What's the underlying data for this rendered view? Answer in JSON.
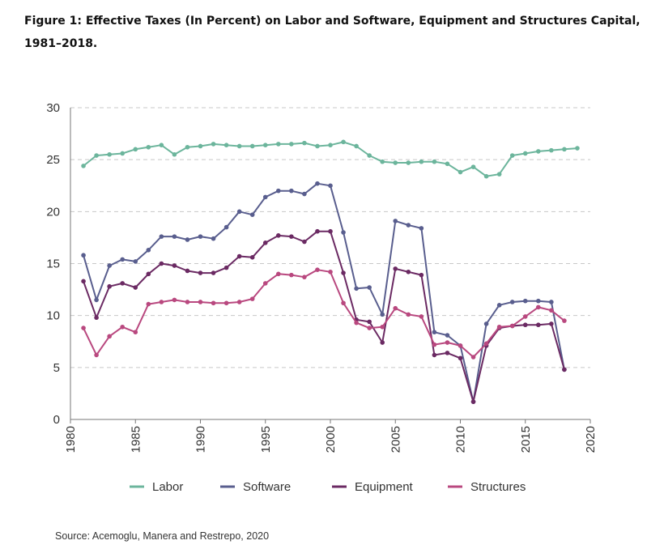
{
  "title": "Figure 1: Effective Taxes (In Percent) on Labor and Software, Equipment and Structures Capital, 1981–2018.",
  "source": "Source: Acemoglu, Manera and Restrepo, 2020",
  "chart_data": {
    "type": "line",
    "title": "Figure 1: Effective Taxes (In Percent) on Labor and Software, Equipment and Structures Capital, 1981–2018.",
    "xlabel": "",
    "ylabel": "",
    "xlim": [
      1980,
      2020
    ],
    "ylim": [
      0,
      30
    ],
    "x_ticks": [
      1980,
      1985,
      1990,
      1995,
      2000,
      2005,
      2010,
      2015,
      2020
    ],
    "y_ticks": [
      0,
      5,
      10,
      15,
      20,
      25,
      30
    ],
    "grid": "horizontal dashed",
    "legend_position": "bottom",
    "x": [
      1981,
      1982,
      1983,
      1984,
      1985,
      1986,
      1987,
      1988,
      1989,
      1990,
      1991,
      1992,
      1993,
      1994,
      1995,
      1996,
      1997,
      1998,
      1999,
      2000,
      2001,
      2002,
      2003,
      2004,
      2005,
      2006,
      2007,
      2008,
      2009,
      2010,
      2011,
      2012,
      2013,
      2014,
      2015,
      2016,
      2017,
      2018,
      2019
    ],
    "series": [
      {
        "name": "Labor",
        "color": "#6cb59c",
        "values": [
          24.4,
          25.4,
          25.5,
          25.6,
          26.0,
          26.2,
          26.4,
          25.5,
          26.2,
          26.3,
          26.5,
          26.4,
          26.3,
          26.3,
          26.4,
          26.5,
          26.5,
          26.6,
          26.3,
          26.4,
          26.7,
          26.3,
          25.4,
          24.8,
          24.7,
          24.7,
          24.8,
          24.8,
          24.6,
          23.8,
          24.3,
          23.4,
          23.6,
          25.4,
          25.6,
          25.8,
          25.9,
          26.0,
          26.1
        ]
      },
      {
        "name": "Software",
        "color": "#595e8e",
        "values": [
          15.8,
          11.5,
          14.8,
          15.4,
          15.2,
          16.3,
          17.6,
          17.6,
          17.3,
          17.6,
          17.4,
          18.5,
          20.0,
          19.7,
          21.4,
          22.0,
          22.0,
          21.7,
          22.7,
          22.5,
          18.0,
          12.6,
          12.7,
          10.1,
          19.1,
          18.7,
          18.4,
          8.4,
          8.1,
          7.1,
          1.7,
          9.2,
          11.0,
          11.3,
          11.4,
          11.4,
          11.3,
          4.8,
          null
        ]
      },
      {
        "name": "Equipment",
        "color": "#6b2a63",
        "values": [
          13.3,
          9.8,
          12.8,
          13.1,
          12.7,
          14.0,
          15.0,
          14.8,
          14.3,
          14.1,
          14.1,
          14.6,
          15.7,
          15.6,
          17.0,
          17.7,
          17.6,
          17.1,
          18.1,
          18.1,
          14.1,
          9.6,
          9.4,
          7.4,
          14.5,
          14.2,
          13.9,
          6.2,
          6.4,
          5.9,
          1.7,
          7.1,
          8.8,
          9.0,
          9.1,
          9.1,
          9.2,
          4.8,
          null
        ]
      },
      {
        "name": "Structures",
        "color": "#b9487f",
        "values": [
          8.8,
          6.2,
          8.0,
          8.9,
          8.4,
          11.1,
          11.3,
          11.5,
          11.3,
          11.3,
          11.2,
          11.2,
          11.3,
          11.6,
          13.1,
          14.0,
          13.9,
          13.7,
          14.4,
          14.2,
          11.2,
          9.3,
          8.8,
          8.9,
          10.7,
          10.1,
          9.9,
          7.2,
          7.4,
          7.1,
          6.0,
          7.3,
          8.9,
          9.0,
          9.9,
          10.8,
          10.5,
          9.5,
          null
        ]
      }
    ]
  }
}
